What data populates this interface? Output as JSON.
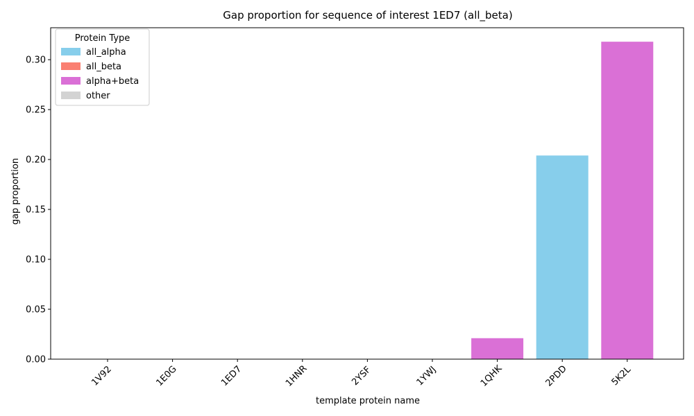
{
  "chart_data": {
    "type": "bar",
    "title": "Gap proportion for sequence of interest 1ED7 (all_beta)",
    "xlabel": "template protein name",
    "ylabel": "gap proportion",
    "ylim": [
      0,
      0.332
    ],
    "yticks": [
      0.0,
      0.05,
      0.1,
      0.15,
      0.2,
      0.25,
      0.3
    ],
    "ytick_labels": [
      "0.00",
      "0.05",
      "0.10",
      "0.15",
      "0.20",
      "0.25",
      "0.30"
    ],
    "categories": [
      "1V92",
      "1E0G",
      "1ED7",
      "1HNR",
      "2YSF",
      "1YWJ",
      "1QHK",
      "2PDD",
      "5K2L"
    ],
    "values": [
      0.0,
      0.0,
      0.0,
      0.0,
      0.0,
      0.0,
      0.021,
      0.204,
      0.318
    ],
    "bar_types": [
      "all_beta",
      "all_beta",
      "all_beta",
      "all_beta",
      "all_beta",
      "all_beta",
      "alpha+beta",
      "all_alpha",
      "alpha+beta"
    ],
    "grid": false,
    "legend": {
      "title": "Protein Type",
      "placement": "top-left",
      "entries": [
        {
          "label": "all_alpha",
          "color": "#87ceeb"
        },
        {
          "label": "all_beta",
          "color": "#fa8072"
        },
        {
          "label": "alpha+beta",
          "color": "#da70d6"
        },
        {
          "label": "other",
          "color": "#d3d3d3"
        }
      ]
    }
  }
}
